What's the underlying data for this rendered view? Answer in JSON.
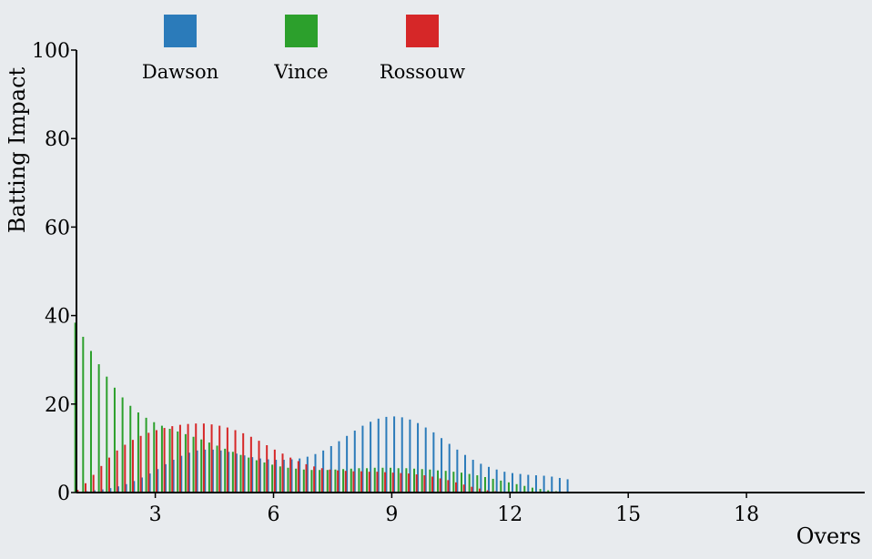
{
  "chart_data": {
    "type": "bar",
    "title": "",
    "xlabel": "Overs",
    "ylabel": "Batting Impact",
    "xlim": [
      1,
      21
    ],
    "ylim": [
      0,
      100
    ],
    "x_ticks": [
      3,
      6,
      9,
      12,
      15,
      18
    ],
    "y_ticks": [
      0,
      20,
      40,
      60,
      80,
      100
    ],
    "grid": false,
    "legend_position": "top",
    "bar_spacing_overs": 0.2,
    "series": [
      {
        "name": "Dawson",
        "color": "#2b7bba",
        "gaussians": [
          {
            "amplitude": 7.5,
            "center": 7.0,
            "width": 1.2
          },
          {
            "amplitude": 17,
            "center": 14.7,
            "width": 1.8
          },
          {
            "amplitude": 2.5,
            "center": 11.0,
            "width": 8.0
          }
        ],
        "values": [
          0.2,
          0.3,
          0.5,
          0.7,
          1.0,
          1.4,
          1.9,
          2.6,
          3.4,
          4.3,
          5.3,
          6.4,
          7.4,
          8.3,
          9.0,
          9.5,
          9.7,
          9.7,
          9.5,
          9.2,
          8.8,
          8.4,
          8.0,
          7.7,
          7.5,
          7.4,
          7.4,
          7.5,
          7.7,
          8.1,
          8.7,
          9.5,
          10.5,
          11.6,
          12.8,
          14.0,
          15.1,
          16.0,
          16.7,
          17.1,
          17.2,
          17.0,
          16.5,
          15.7,
          14.7,
          13.6,
          12.3,
          11.0,
          9.7,
          8.5,
          7.4,
          6.5,
          5.8,
          5.2,
          4.7,
          4.4,
          4.2,
          4.0,
          3.9,
          3.8,
          3.6,
          3.3,
          3.0
        ]
      },
      {
        "name": "Vince",
        "color": "#2ca02c",
        "gaussians": [
          {
            "amplitude": 33,
            "center": 1.0,
            "width": 1.7
          },
          {
            "amplitude": 5.2,
            "center": 10.5,
            "width": 6.0
          }
        ],
        "values": [
          38.4,
          35.2,
          32.0,
          29.0,
          26.2,
          23.7,
          21.5,
          19.6,
          18.1,
          16.9,
          15.9,
          15.1,
          14.4,
          13.8,
          13.2,
          12.6,
          12.0,
          11.3,
          10.6,
          9.9,
          9.2,
          8.5,
          7.9,
          7.3,
          6.8,
          6.3,
          5.9,
          5.6,
          5.4,
          5.2,
          5.1,
          5.1,
          5.1,
          5.2,
          5.3,
          5.4,
          5.5,
          5.5,
          5.6,
          5.6,
          5.6,
          5.5,
          5.5,
          5.4,
          5.3,
          5.2,
          5.0,
          4.9,
          4.7,
          4.5,
          4.2,
          3.9,
          3.5,
          3.1,
          2.7,
          2.3,
          1.9,
          1.5,
          1.1,
          0.8,
          0.5,
          0.3,
          0.2
        ]
      },
      {
        "name": "Rossouw",
        "color": "#d62728",
        "gaussians": [
          {
            "amplitude": 15.5,
            "center": 4.0,
            "width": 1.5
          },
          {
            "amplitude": 4.7,
            "center": 9.0,
            "width": 2.8
          }
        ],
        "values": [
          0.6,
          2.1,
          4.0,
          6.0,
          7.9,
          9.5,
          10.8,
          11.9,
          12.8,
          13.5,
          14.1,
          14.6,
          15.0,
          15.3,
          15.5,
          15.6,
          15.6,
          15.4,
          15.1,
          14.7,
          14.1,
          13.4,
          12.6,
          11.7,
          10.7,
          9.7,
          8.8,
          7.9,
          7.1,
          6.4,
          5.9,
          5.5,
          5.2,
          5.0,
          4.9,
          4.8,
          4.8,
          4.7,
          4.7,
          4.6,
          4.5,
          4.4,
          4.3,
          4.1,
          3.9,
          3.6,
          3.2,
          2.8,
          2.3,
          1.8,
          1.3,
          0.9,
          0.5,
          0.3,
          0.1,
          0.1,
          0.0,
          0.0,
          0.0,
          0.0,
          0.0,
          0.0,
          0.0
        ]
      }
    ]
  }
}
